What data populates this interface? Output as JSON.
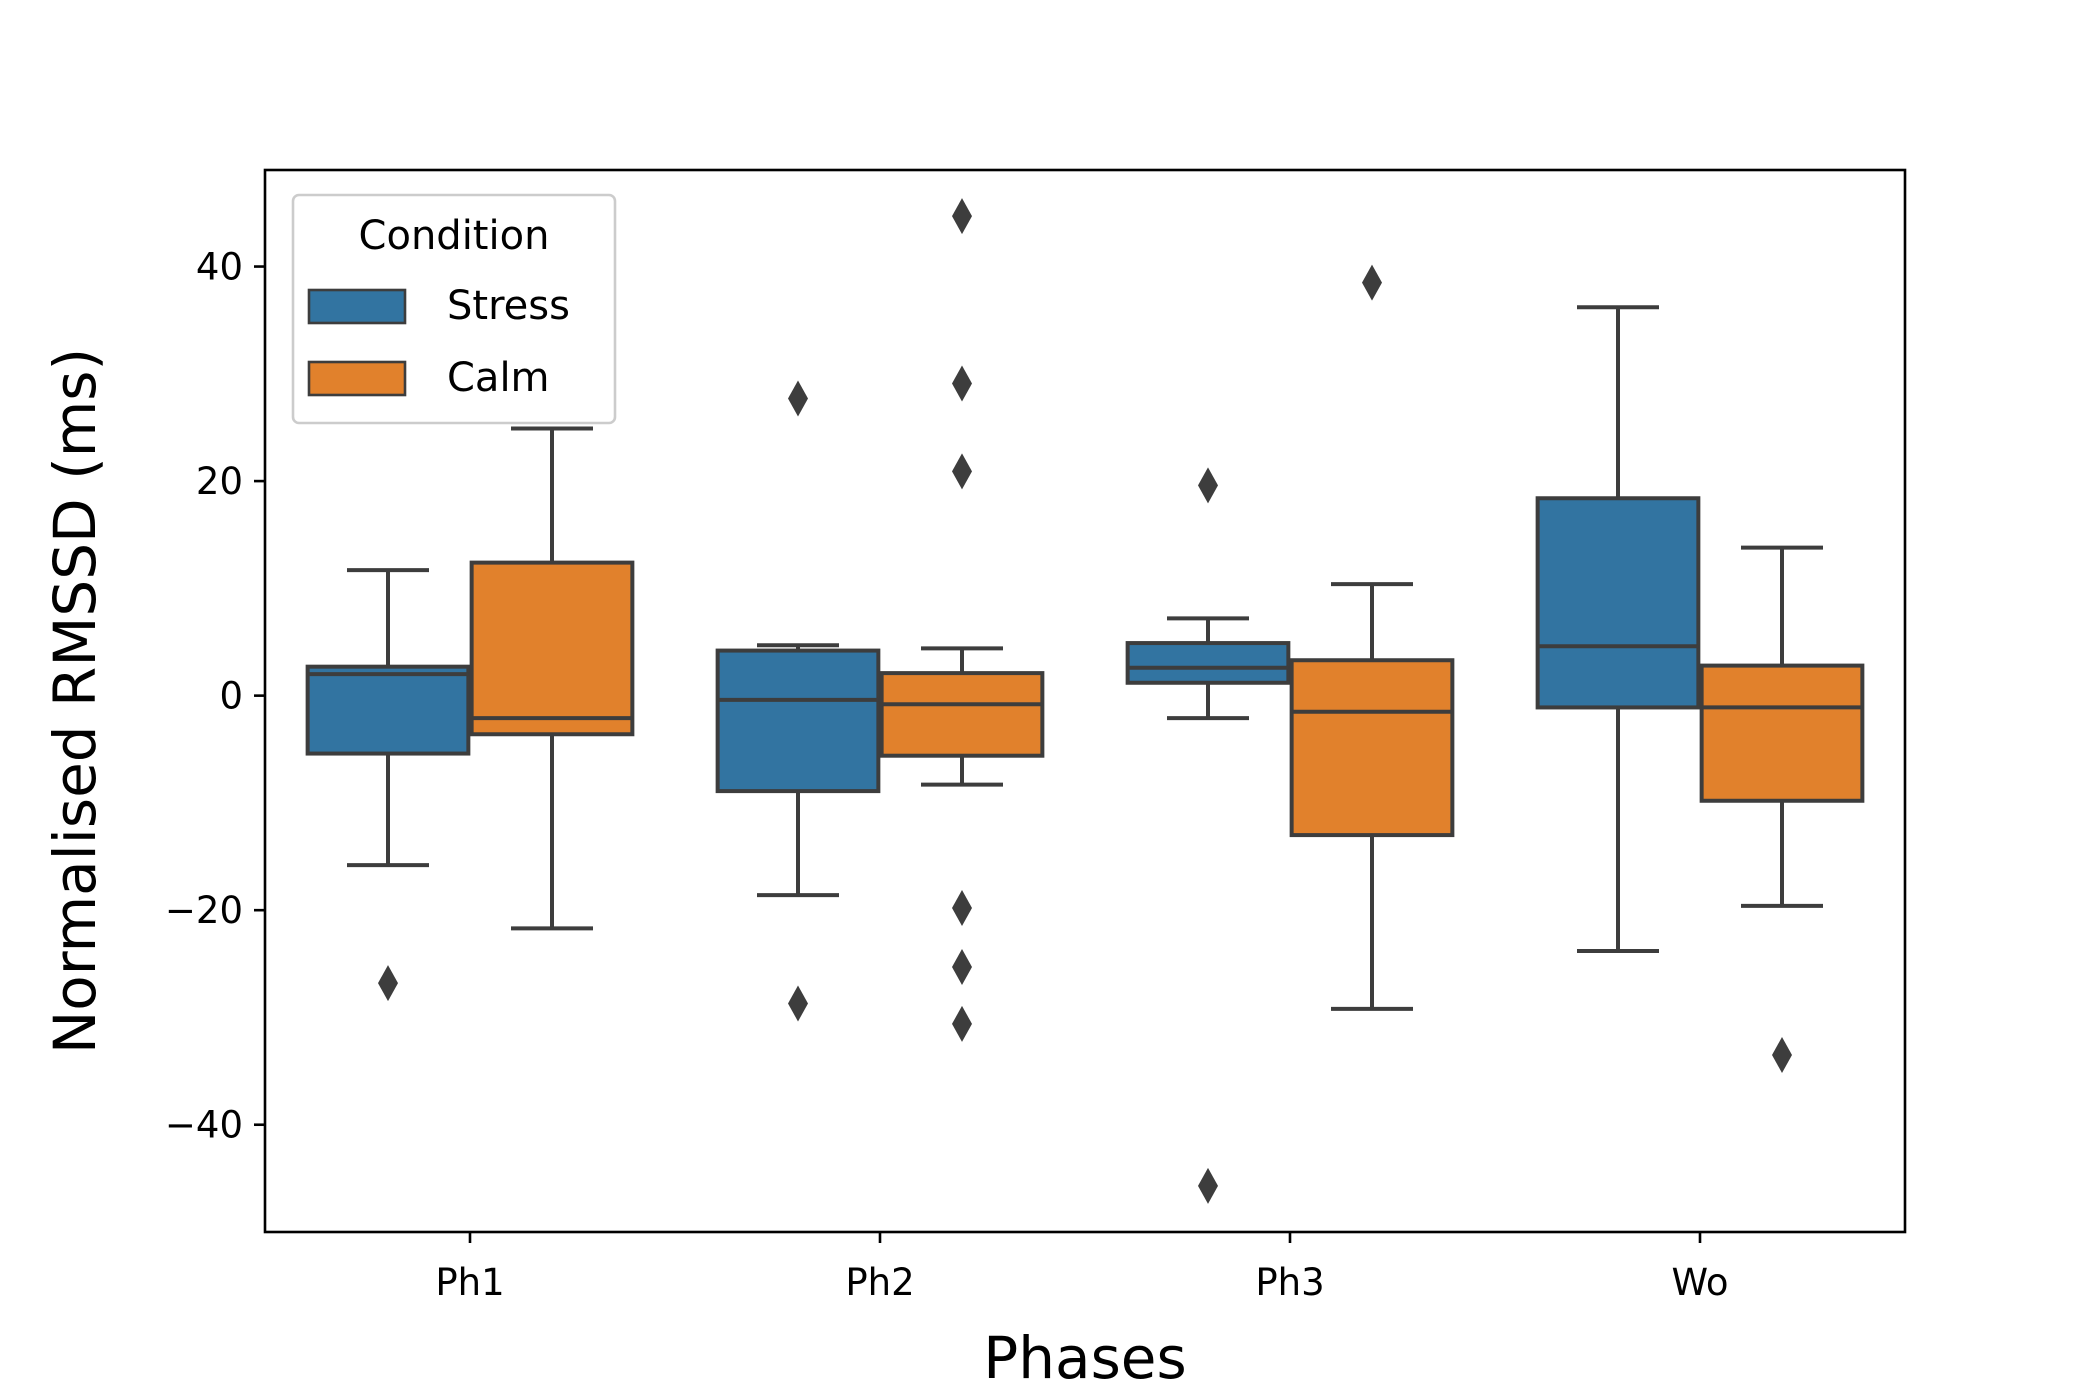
{
  "chart_data": {
    "type": "box",
    "title": "",
    "xlabel": "Phases",
    "ylabel": "Normalised RMSSD (ms)",
    "ylim": [
      -50,
      49
    ],
    "yticks": [
      -40,
      -20,
      0,
      20,
      40
    ],
    "categories": [
      "Ph1",
      "Ph2",
      "Ph3",
      "Wo"
    ],
    "grid": false,
    "legend": {
      "title": "Condition",
      "placement": "top-left",
      "entries": [
        {
          "name": "Stress",
          "color": "#3274a1"
        },
        {
          "name": "Calm",
          "color": "#e1812c"
        }
      ]
    },
    "series": [
      {
        "name": "Stress",
        "color": "#3274a1",
        "boxes": [
          {
            "category": "Ph1",
            "whisker_low": -15.8,
            "q1": -5.4,
            "median": 2.0,
            "q3": 2.7,
            "whisker_high": 11.7,
            "outliers": [
              -26.8
            ]
          },
          {
            "category": "Ph2",
            "whisker_low": -18.6,
            "q1": -8.9,
            "median": -0.4,
            "q3": 4.2,
            "whisker_high": 4.7,
            "outliers": [
              27.7,
              -28.7
            ]
          },
          {
            "category": "Ph3",
            "whisker_low": -2.1,
            "q1": 1.2,
            "median": 2.6,
            "q3": 4.9,
            "whisker_high": 7.2,
            "outliers": [
              19.6,
              -45.7
            ]
          },
          {
            "category": "Wo",
            "whisker_low": -23.8,
            "q1": -1.1,
            "median": 4.6,
            "q3": 18.4,
            "whisker_high": 36.2,
            "outliers": []
          }
        ]
      },
      {
        "name": "Calm",
        "color": "#e1812c",
        "boxes": [
          {
            "category": "Ph1",
            "whisker_low": -21.7,
            "q1": -3.6,
            "median": -2.1,
            "q3": 12.4,
            "whisker_high": 24.9,
            "outliers": []
          },
          {
            "category": "Ph2",
            "whisker_low": -8.3,
            "q1": -5.6,
            "median": -0.8,
            "q3": 2.1,
            "whisker_high": 4.4,
            "outliers": [
              44.7,
              29.1,
              20.9,
              -19.8,
              -25.3,
              -30.6
            ]
          },
          {
            "category": "Ph3",
            "whisker_low": -29.2,
            "q1": -13.0,
            "median": -1.5,
            "q3": 3.3,
            "whisker_high": 10.4,
            "outliers": [
              38.5
            ]
          },
          {
            "category": "Wo",
            "whisker_low": -19.6,
            "q1": -9.8,
            "median": -1.1,
            "q3": 2.8,
            "whisker_high": 13.8,
            "outliers": [
              -33.5
            ]
          }
        ]
      }
    ]
  }
}
